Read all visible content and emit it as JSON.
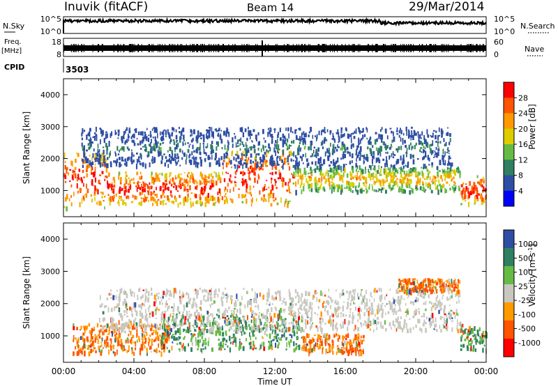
{
  "header": {
    "station": "Inuvik (fitACF)",
    "beam": "Beam 14",
    "date": "29/Mar/2014"
  },
  "strips": {
    "nsky_label": "N.Sky",
    "nsky_ticks": [
      "10^5",
      "10^0"
    ],
    "nsearch_label": "N.Search",
    "nsearch_ticks": [
      "10^5",
      "10^0"
    ],
    "freq_label": "Freq.",
    "freq_unit": "[MHz]",
    "freq_ticks": [
      "18",
      "8"
    ],
    "nave_label": "Nave",
    "nave_ticks": [
      "60",
      "0"
    ],
    "cpid_label": "CPID",
    "cpid_value": "3503"
  },
  "colors": {
    "power": [
      "#0000ff",
      "#2e4ea3",
      "#2f8060",
      "#66bb44",
      "#ddcc00",
      "#ff9900",
      "#ff5500",
      "#ff0000"
    ],
    "velocity": [
      "#ff0000",
      "#ff5500",
      "#ff9900",
      "#c8c8c0",
      "#66bb44",
      "#2f8060",
      "#2e4ea3"
    ]
  },
  "chart_data": [
    {
      "type": "heatmap",
      "parameter": "Power",
      "ylabel": "Slant Range [km]",
      "xlabel": "Time UT",
      "x_range": [
        "00:00",
        "24:00"
      ],
      "ylim": [
        180,
        4500
      ],
      "yticks": [
        "4000",
        "3000",
        "2000",
        "1000"
      ],
      "xticks": [
        "00:00",
        "04:00",
        "08:00",
        "12:00",
        "16:00",
        "20:00",
        "00:00"
      ],
      "colorbar": {
        "label": "Power [dB]",
        "ticks": [
          "28",
          "24",
          "20",
          "16",
          "12",
          "8",
          "4"
        ],
        "range": [
          0,
          32
        ]
      },
      "bands": [
        {
          "t_start": 0.0,
          "t_end": 2.5,
          "r_min": 500,
          "r_max": 2200,
          "level": "strong"
        },
        {
          "t_start": 2.5,
          "t_end": 9.0,
          "r_min": 600,
          "r_max": 1600,
          "level": "strong"
        },
        {
          "t_start": 9.0,
          "t_end": 13.0,
          "r_min": 600,
          "r_max": 2300,
          "level": "strong"
        },
        {
          "t_start": 13.0,
          "t_end": 22.5,
          "r_min": 1000,
          "r_max": 1800,
          "level": "medium"
        },
        {
          "t_start": 22.5,
          "t_end": 24.0,
          "r_min": 600,
          "r_max": 1500,
          "level": "strong"
        },
        {
          "t_start": 1.0,
          "t_end": 22.0,
          "r_min": 1800,
          "r_max": 3000,
          "level": "weak"
        }
      ]
    },
    {
      "type": "heatmap",
      "parameter": "Velocity",
      "ylabel": "Slant Range [km]",
      "xlabel": "Time UT",
      "x_range": [
        "00:00",
        "24:00"
      ],
      "ylim": [
        180,
        4500
      ],
      "yticks": [
        "4000",
        "3000",
        "2000",
        "1000"
      ],
      "xticks": [
        "00:00",
        "04:00",
        "08:00",
        "12:00",
        "16:00",
        "20:00",
        "00:00"
      ],
      "colorbar": {
        "label": "Velocity [m s^-1]",
        "ticks": [
          "1000",
          "500",
          "100",
          "25",
          "-25",
          "-100",
          "-500",
          "-1000"
        ]
      },
      "bands": [
        {
          "t_start": 0.5,
          "t_end": 6.0,
          "r_min": 500,
          "r_max": 1400,
          "velocity": "-100 to -500"
        },
        {
          "t_start": 5.5,
          "t_end": 13.5,
          "r_min": 600,
          "r_max": 1700,
          "velocity": "100 to 500"
        },
        {
          "t_start": 13.5,
          "t_end": 17.0,
          "r_min": 500,
          "r_max": 1100,
          "velocity": "-100 to -500"
        },
        {
          "t_start": 2.0,
          "t_end": 22.5,
          "r_min": 1200,
          "r_max": 2500,
          "velocity": "-25 to 25"
        },
        {
          "t_start": 19.0,
          "t_end": 22.5,
          "r_min": 2400,
          "r_max": 2800,
          "velocity": "-100 to -500"
        },
        {
          "t_start": 22.5,
          "t_end": 24.0,
          "r_min": 600,
          "r_max": 1400,
          "velocity": "100 to 500"
        }
      ]
    }
  ]
}
